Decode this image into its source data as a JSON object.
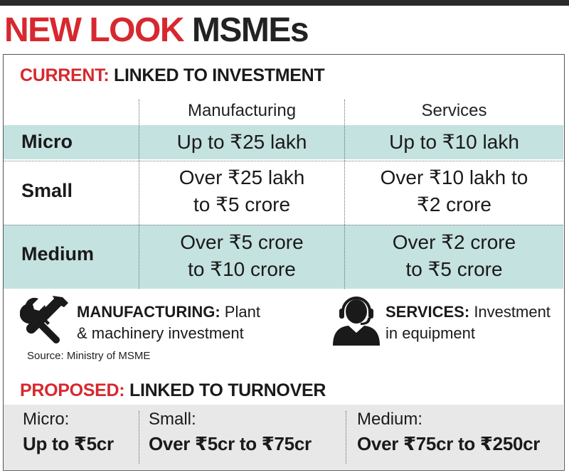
{
  "headline": {
    "part1": "NEW LOOK",
    "part2": "MSMEs"
  },
  "current": {
    "title_red": "CURRENT:",
    "title_dark": "LINKED TO INVESTMENT",
    "columns": [
      "Manufacturing",
      "Services"
    ],
    "rows": [
      {
        "label": "Micro",
        "manufacturing": [
          "Up to ₹25 lakh"
        ],
        "services": [
          "Up to ₹10 lakh"
        ]
      },
      {
        "label": "Small",
        "manufacturing": [
          "Over ₹25 lakh",
          "to ₹5 crore"
        ],
        "services": [
          "Over ₹10 lakh to",
          "₹2 crore"
        ]
      },
      {
        "label": "Medium",
        "manufacturing": [
          "Over ₹5 crore",
          "to ₹10 crore"
        ],
        "services": [
          "Over ₹2 crore",
          "to ₹5 crore"
        ]
      }
    ]
  },
  "legend": {
    "manufacturing": {
      "icon": "wrench-screwdriver-icon",
      "bold": "MANUFACTURING:",
      "text1": "Plant",
      "text2": "& machinery investment"
    },
    "services": {
      "icon": "headset-person-icon",
      "bold": "SERVICES:",
      "text1": "Investment",
      "text2": "in equipment"
    }
  },
  "source": "Source: Ministry of MSME",
  "proposed": {
    "title_red": "PROPOSED:",
    "title_dark": "LINKED TO TURNOVER",
    "items": [
      {
        "label": "Micro:",
        "value": "Up to ₹5cr"
      },
      {
        "label": "Small:",
        "value": "Over ₹5cr to ₹75cr"
      },
      {
        "label": "Medium:",
        "value": "Over ₹75cr to ₹250cr"
      }
    ]
  },
  "colors": {
    "accent_red": "#d7282f",
    "band_teal": "#c4e2df",
    "band_grey": "#e8e8e8",
    "text_dark": "#1a1a1a"
  }
}
